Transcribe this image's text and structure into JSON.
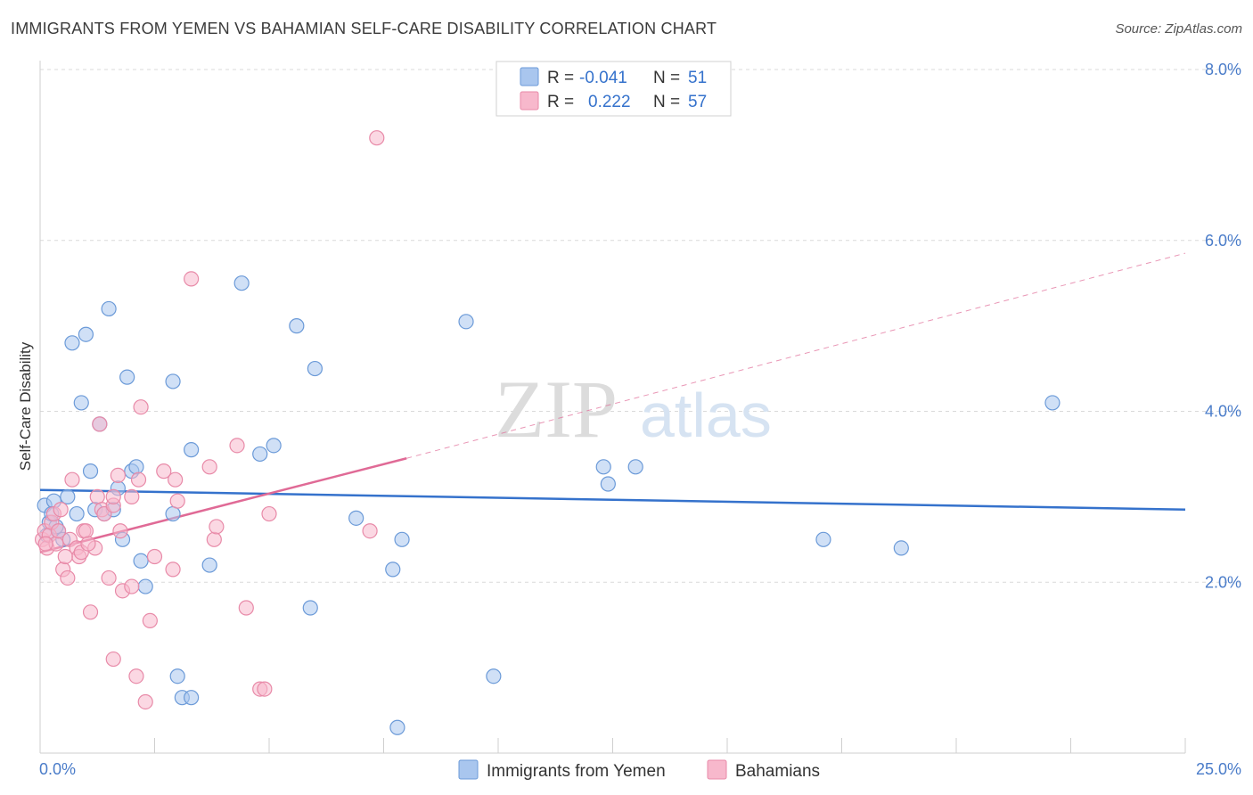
{
  "header": {
    "title": "IMMIGRANTS FROM YEMEN VS BAHAMIAN SELF-CARE DISABILITY CORRELATION CHART",
    "source": "Source: ZipAtlas.com"
  },
  "watermark": {
    "zip": "ZIP",
    "atlas": "atlas"
  },
  "legend": {
    "rows": [
      {
        "r_label": "R =",
        "r_value": "-0.041",
        "n_label": "N =",
        "n_value": "51",
        "color": "#a9c6ee"
      },
      {
        "r_label": "R =",
        "r_value": "0.222",
        "n_label": "N =",
        "n_value": "57",
        "color": "#f7b8cc"
      }
    ]
  },
  "bottom_legend": {
    "items": [
      {
        "label": "Immigrants from Yemen",
        "color": "#a9c6ee"
      },
      {
        "label": "Bahamians",
        "color": "#f7b8cc"
      }
    ]
  },
  "chart_data": {
    "type": "scatter",
    "title": "IMMIGRANTS FROM YEMEN VS BAHAMIAN SELF-CARE DISABILITY CORRELATION CHART",
    "xlabel": "",
    "ylabel": "Self-Care Disability",
    "xlim": [
      0,
      25
    ],
    "ylim": [
      0,
      8.0
    ],
    "x_tick_labels": [
      "0.0%",
      "25.0%"
    ],
    "y_ticks": [
      2,
      4,
      6,
      8
    ],
    "y_tick_labels": [
      "2.0%",
      "4.0%",
      "6.0%",
      "8.0%"
    ],
    "grid": true,
    "series": [
      {
        "name": "Immigrants from Yemen",
        "color": "#a9c6ee",
        "stroke": "#6b9ad8",
        "trend": {
          "x": [
            0,
            25
          ],
          "y": [
            3.08,
            2.85
          ],
          "style": "solid",
          "color": "#3572cc"
        },
        "points": [
          [
            0.1,
            2.9
          ],
          [
            0.2,
            2.7
          ],
          [
            0.3,
            2.95
          ],
          [
            0.4,
            2.6
          ],
          [
            0.5,
            2.5
          ],
          [
            0.6,
            3.0
          ],
          [
            0.7,
            4.8
          ],
          [
            0.8,
            2.8
          ],
          [
            0.9,
            4.1
          ],
          [
            1.0,
            4.9
          ],
          [
            1.1,
            3.3
          ],
          [
            1.2,
            2.85
          ],
          [
            1.3,
            3.85
          ],
          [
            1.4,
            2.8
          ],
          [
            1.5,
            5.2
          ],
          [
            1.6,
            2.85
          ],
          [
            1.7,
            3.1
          ],
          [
            1.8,
            2.5
          ],
          [
            1.9,
            4.4
          ],
          [
            2.0,
            3.3
          ],
          [
            2.1,
            3.35
          ],
          [
            2.2,
            2.25
          ],
          [
            2.3,
            1.95
          ],
          [
            2.9,
            4.35
          ],
          [
            2.9,
            2.8
          ],
          [
            3.0,
            0.9
          ],
          [
            3.1,
            0.65
          ],
          [
            3.3,
            0.65
          ],
          [
            3.3,
            3.55
          ],
          [
            3.7,
            2.2
          ],
          [
            4.4,
            5.5
          ],
          [
            4.8,
            3.5
          ],
          [
            5.1,
            3.6
          ],
          [
            5.6,
            5.0
          ],
          [
            5.9,
            1.7
          ],
          [
            6.0,
            4.5
          ],
          [
            6.9,
            2.75
          ],
          [
            7.7,
            2.15
          ],
          [
            7.8,
            0.3
          ],
          [
            7.9,
            2.5
          ],
          [
            9.3,
            5.05
          ],
          [
            9.9,
            0.9
          ],
          [
            12.3,
            3.35
          ],
          [
            12.4,
            3.15
          ],
          [
            13.0,
            3.35
          ],
          [
            17.1,
            2.5
          ],
          [
            18.8,
            2.4
          ],
          [
            22.1,
            4.1
          ],
          [
            0.15,
            2.55
          ],
          [
            0.25,
            2.8
          ],
          [
            0.35,
            2.65
          ]
        ]
      },
      {
        "name": "Bahamians",
        "color": "#f7b8cc",
        "stroke": "#e88aa8",
        "trend": {
          "x": [
            0,
            8.0
          ],
          "y": [
            2.35,
            3.45
          ],
          "style": "solid",
          "color": "#e06a96",
          "extension": {
            "x": [
              8.0,
              25
            ],
            "y": [
              3.45,
              5.85
            ],
            "style": "dashed"
          }
        },
        "points": [
          [
            0.05,
            2.5
          ],
          [
            0.1,
            2.6
          ],
          [
            0.15,
            2.4
          ],
          [
            0.2,
            2.55
          ],
          [
            0.25,
            2.7
          ],
          [
            0.3,
            2.8
          ],
          [
            0.35,
            2.45
          ],
          [
            0.4,
            2.6
          ],
          [
            0.45,
            2.85
          ],
          [
            0.5,
            2.15
          ],
          [
            0.6,
            2.05
          ],
          [
            0.65,
            2.5
          ],
          [
            0.7,
            3.2
          ],
          [
            0.8,
            2.4
          ],
          [
            0.85,
            2.3
          ],
          [
            0.9,
            2.35
          ],
          [
            0.95,
            2.6
          ],
          [
            1.0,
            2.6
          ],
          [
            1.1,
            1.65
          ],
          [
            1.2,
            2.4
          ],
          [
            1.25,
            3.0
          ],
          [
            1.3,
            3.85
          ],
          [
            1.35,
            2.85
          ],
          [
            1.4,
            2.8
          ],
          [
            1.5,
            2.05
          ],
          [
            1.6,
            2.9
          ],
          [
            1.6,
            3.0
          ],
          [
            1.6,
            1.1
          ],
          [
            1.7,
            3.25
          ],
          [
            1.75,
            2.6
          ],
          [
            1.8,
            1.9
          ],
          [
            2.0,
            3.0
          ],
          [
            2.0,
            1.95
          ],
          [
            2.1,
            0.9
          ],
          [
            2.15,
            3.2
          ],
          [
            2.2,
            4.05
          ],
          [
            2.3,
            0.6
          ],
          [
            2.4,
            1.55
          ],
          [
            2.5,
            2.3
          ],
          [
            2.7,
            3.3
          ],
          [
            2.9,
            2.15
          ],
          [
            2.95,
            3.2
          ],
          [
            3.0,
            2.95
          ],
          [
            3.3,
            5.55
          ],
          [
            3.7,
            3.35
          ],
          [
            3.8,
            2.5
          ],
          [
            3.85,
            2.65
          ],
          [
            4.3,
            3.6
          ],
          [
            4.5,
            1.7
          ],
          [
            4.8,
            0.75
          ],
          [
            4.9,
            0.75
          ],
          [
            5.0,
            2.8
          ],
          [
            7.2,
            2.6
          ],
          [
            7.35,
            7.2
          ],
          [
            0.55,
            2.3
          ],
          [
            1.05,
            2.45
          ],
          [
            0.12,
            2.45
          ]
        ]
      }
    ]
  }
}
